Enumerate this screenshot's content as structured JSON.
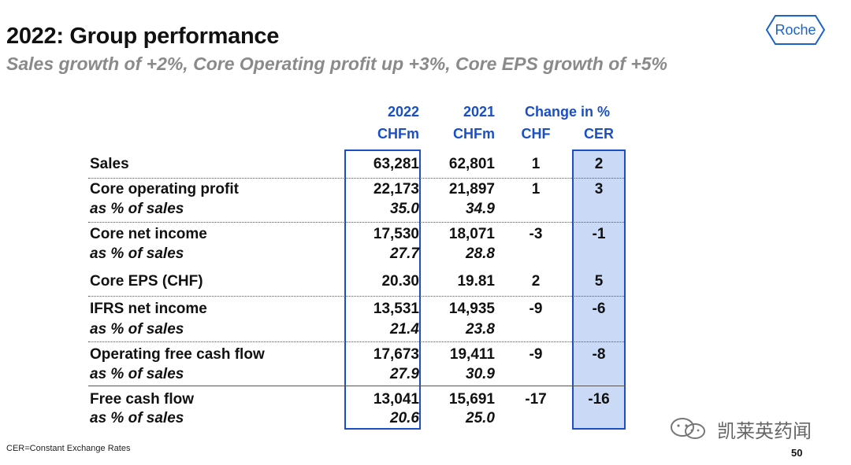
{
  "title": "2022: Group performance",
  "subtitle": "Sales growth of +2%, Core Operating profit up +3%, Core EPS growth of +5%",
  "logo": {
    "text": "Roche"
  },
  "headers": {
    "y2022": "2022",
    "y2021": "2021",
    "change": "Change in %",
    "chfm_2022": "CHFm",
    "chfm_2021": "CHFm",
    "chf": "CHF",
    "cer": "CER"
  },
  "rows": [
    {
      "label": "Sales",
      "v2022": "63,281",
      "v2021": "62,801",
      "chf": "1",
      "cer": "2"
    },
    {
      "label": "Core operating profit",
      "v2022": "22,173",
      "v2021": "21,897",
      "chf": "1",
      "cer": "3",
      "sub_label": "as % of sales",
      "sub2022": "35.0",
      "sub2021": "34.9"
    },
    {
      "label": "Core net income",
      "v2022": "17,530",
      "v2021": "18,071",
      "chf": "-3",
      "cer": "-1",
      "sub_label": "as % of sales",
      "sub2022": "27.7",
      "sub2021": "28.8"
    },
    {
      "label": "Core EPS (CHF)",
      "v2022": "20.30",
      "v2021": "19.81",
      "chf": "2",
      "cer": "5"
    },
    {
      "label": "IFRS net income",
      "v2022": "13,531",
      "v2021": "14,935",
      "chf": "-9",
      "cer": "-6",
      "sub_label": "as % of sales",
      "sub2022": "21.4",
      "sub2021": "23.8"
    },
    {
      "label": "Operating free cash flow",
      "v2022": "17,673",
      "v2021": "19,411",
      "chf": "-9",
      "cer": "-8",
      "sub_label": "as % of sales",
      "sub2022": "27.9",
      "sub2021": "30.9"
    },
    {
      "label": "Free cash flow",
      "v2022": "13,041",
      "v2021": "15,691",
      "chf": "-17",
      "cer": "-16",
      "sub_label": "as % of sales",
      "sub2022": "20.6",
      "sub2021": "25.0"
    }
  ],
  "footnote": "CER=Constant Exchange Rates",
  "page_number": "50",
  "watermark": {
    "text": "凯莱英药闻",
    "icon": "wechat-icon"
  },
  "colors": {
    "accent": "#1b4fc2",
    "highlight": "#c9d9f6",
    "subtitle": "#8a8a8a"
  }
}
